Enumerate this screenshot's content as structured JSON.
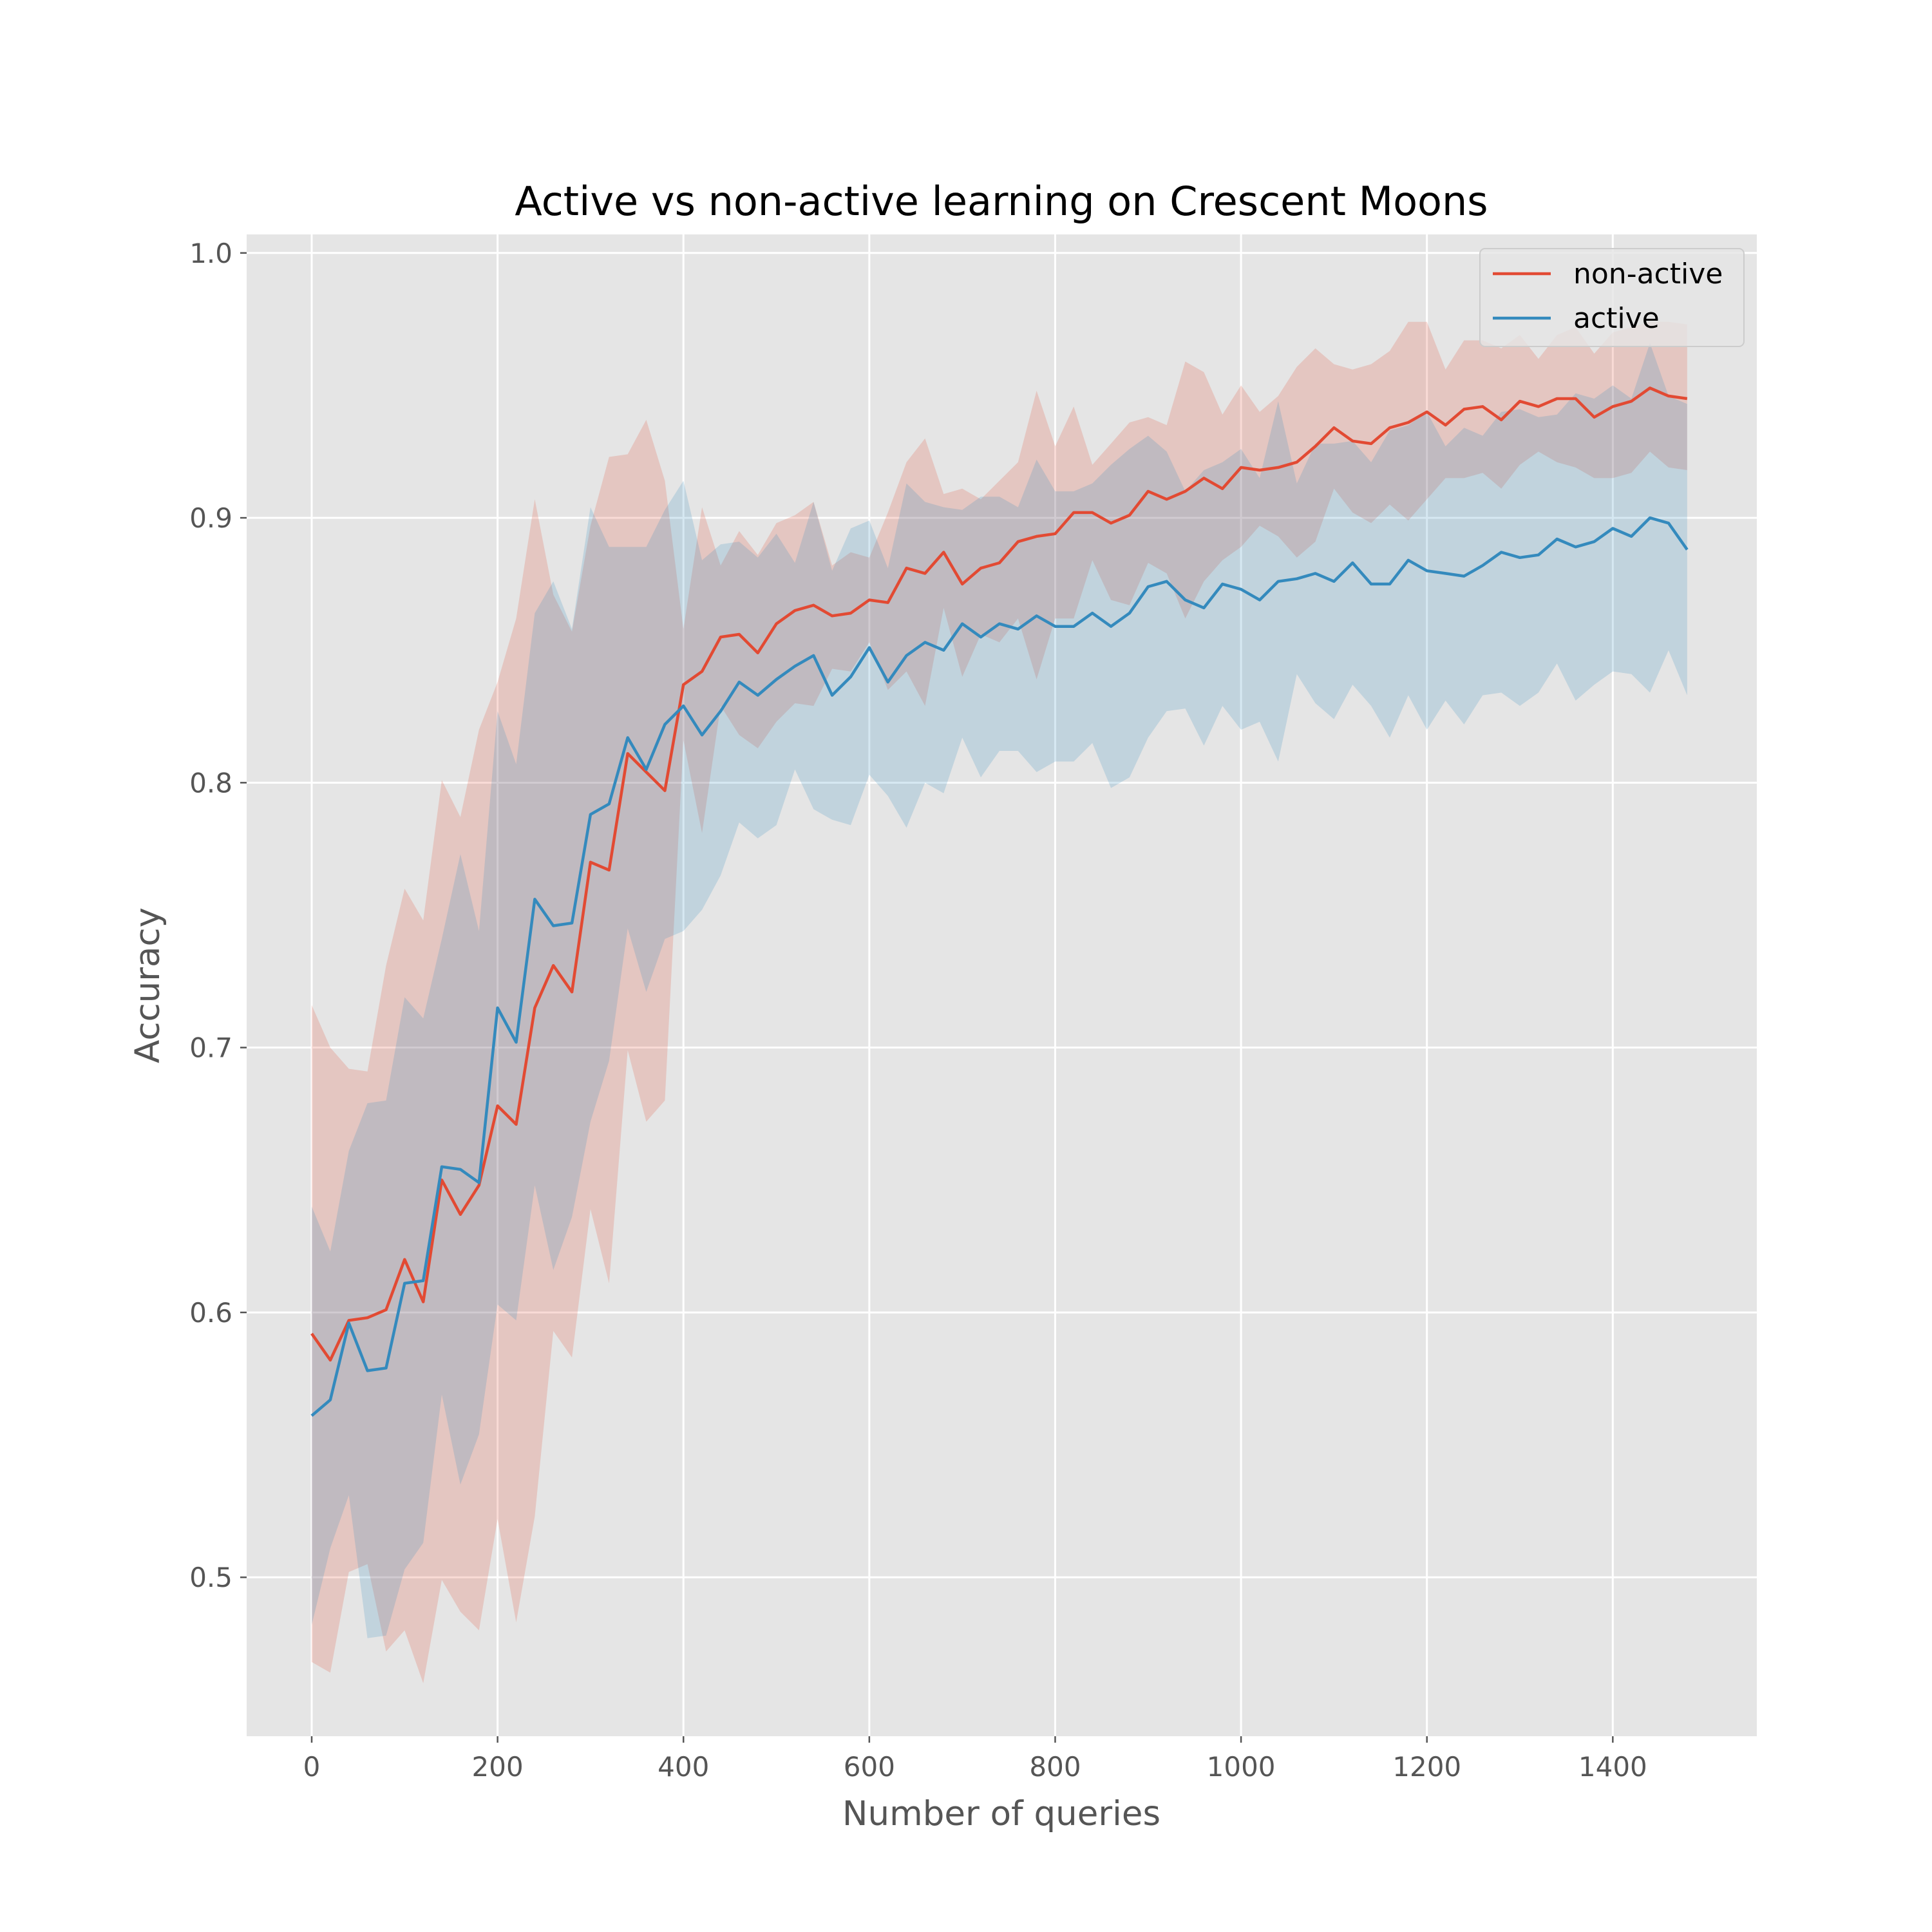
{
  "chart_data": {
    "type": "line",
    "title": "Active vs non-active learning on Crescent Moons",
    "xlabel": "Number of queries",
    "ylabel": "Accuracy",
    "xlim": [
      -70,
      1555
    ],
    "ylim": [
      0.44,
      1.007
    ],
    "xticks": [
      0,
      200,
      400,
      600,
      800,
      1000,
      1200,
      1400
    ],
    "yticks": [
      0.5,
      0.6,
      0.7,
      0.8,
      0.9,
      1.0
    ],
    "xtick_labels": [
      "0",
      "200",
      "400",
      "600",
      "800",
      "1000",
      "1200",
      "1400"
    ],
    "ytick_labels": [
      "0.5",
      "0.6",
      "0.7",
      "0.8",
      "0.9",
      "1.0"
    ],
    "grid": true,
    "legend_position": "top-right",
    "x": [
      0,
      20,
      40,
      60,
      80,
      100,
      120,
      140,
      160,
      180,
      200,
      220,
      240,
      260,
      280,
      300,
      320,
      340,
      360,
      380,
      400,
      420,
      440,
      460,
      480,
      500,
      520,
      540,
      560,
      580,
      600,
      620,
      640,
      660,
      680,
      700,
      720,
      740,
      760,
      780,
      800,
      820,
      840,
      860,
      880,
      900,
      920,
      940,
      960,
      980,
      1000,
      1020,
      1040,
      1060,
      1080,
      1100,
      1120,
      1140,
      1160,
      1180,
      1200,
      1220,
      1240,
      1260,
      1280,
      1300,
      1320,
      1340,
      1360,
      1380,
      1400,
      1420,
      1440,
      1460,
      1480
    ],
    "series": [
      {
        "name": "non-active",
        "color": "#E24A33",
        "values": [
          0.592,
          0.582,
          0.597,
          0.598,
          0.601,
          0.62,
          0.604,
          0.65,
          0.637,
          0.648,
          0.678,
          0.671,
          0.715,
          0.731,
          0.721,
          0.77,
          0.767,
          0.811,
          0.804,
          0.797,
          0.837,
          0.842,
          0.855,
          0.856,
          0.849,
          0.86,
          0.865,
          0.867,
          0.863,
          0.864,
          0.869,
          0.868,
          0.881,
          0.879,
          0.887,
          0.875,
          0.881,
          0.883,
          0.891,
          0.893,
          0.894,
          0.902,
          0.902,
          0.898,
          0.901,
          0.91,
          0.907,
          0.91,
          0.915,
          0.911,
          0.919,
          0.918,
          0.919,
          0.921,
          0.927,
          0.934,
          0.929,
          0.928,
          0.934,
          0.936,
          0.94,
          0.935,
          0.941,
          0.942,
          0.937,
          0.944,
          0.942,
          0.945,
          0.945,
          0.938,
          0.942,
          0.944,
          0.949,
          0.946,
          0.945
        ],
        "upper": [
          0.716,
          0.7,
          0.692,
          0.691,
          0.731,
          0.76,
          0.748,
          0.801,
          0.787,
          0.82,
          0.838,
          0.862,
          0.907,
          0.871,
          0.857,
          0.897,
          0.923,
          0.924,
          0.937,
          0.914,
          0.858,
          0.904,
          0.882,
          0.895,
          0.886,
          0.898,
          0.901,
          0.906,
          0.882,
          0.887,
          0.885,
          0.902,
          0.921,
          0.93,
          0.909,
          0.911,
          0.907,
          0.914,
          0.921,
          0.948,
          0.927,
          0.942,
          0.92,
          0.928,
          0.936,
          0.938,
          0.935,
          0.959,
          0.955,
          0.939,
          0.95,
          0.94,
          0.946,
          0.957,
          0.964,
          0.958,
          0.956,
          0.958,
          0.963,
          0.974,
          0.974,
          0.956,
          0.967,
          0.967,
          0.964,
          0.969,
          0.96,
          0.969,
          0.972,
          0.962,
          0.97,
          0.972,
          0.974,
          0.974,
          0.973
        ],
        "lower": [
          0.468,
          0.464,
          0.502,
          0.505,
          0.472,
          0.48,
          0.46,
          0.499,
          0.487,
          0.48,
          0.522,
          0.483,
          0.523,
          0.593,
          0.583,
          0.639,
          0.611,
          0.699,
          0.672,
          0.68,
          0.816,
          0.781,
          0.829,
          0.818,
          0.813,
          0.823,
          0.83,
          0.829,
          0.843,
          0.842,
          0.853,
          0.835,
          0.842,
          0.829,
          0.866,
          0.84,
          0.856,
          0.853,
          0.862,
          0.839,
          0.862,
          0.862,
          0.884,
          0.869,
          0.867,
          0.883,
          0.879,
          0.862,
          0.876,
          0.884,
          0.889,
          0.897,
          0.893,
          0.885,
          0.891,
          0.911,
          0.902,
          0.898,
          0.905,
          0.899,
          0.907,
          0.915,
          0.915,
          0.917,
          0.911,
          0.92,
          0.925,
          0.921,
          0.919,
          0.915,
          0.915,
          0.917,
          0.925,
          0.919,
          0.918
        ]
      },
      {
        "name": "active",
        "color": "#348ABD",
        "values": [
          0.561,
          0.567,
          0.596,
          0.578,
          0.579,
          0.611,
          0.612,
          0.655,
          0.654,
          0.649,
          0.715,
          0.702,
          0.756,
          0.746,
          0.747,
          0.788,
          0.792,
          0.817,
          0.805,
          0.822,
          0.829,
          0.818,
          0.827,
          0.838,
          0.833,
          0.839,
          0.844,
          0.848,
          0.833,
          0.84,
          0.851,
          0.838,
          0.848,
          0.853,
          0.85,
          0.86,
          0.855,
          0.86,
          0.858,
          0.863,
          0.859,
          0.859,
          0.864,
          0.859,
          0.864,
          0.874,
          0.876,
          0.869,
          0.866,
          0.875,
          0.873,
          0.869,
          0.876,
          0.877,
          0.879,
          0.876,
          0.883,
          0.875,
          0.875,
          0.884,
          0.88,
          0.879,
          0.878,
          0.882,
          0.887,
          0.885,
          0.886,
          0.892,
          0.889,
          0.891,
          0.896,
          0.893,
          0.9,
          0.898,
          0.888
        ],
        "upper": [
          0.64,
          0.623,
          0.661,
          0.679,
          0.68,
          0.719,
          0.711,
          0.741,
          0.773,
          0.744,
          0.827,
          0.807,
          0.864,
          0.876,
          0.858,
          0.904,
          0.889,
          0.889,
          0.889,
          0.903,
          0.914,
          0.884,
          0.89,
          0.891,
          0.885,
          0.894,
          0.883,
          0.906,
          0.88,
          0.896,
          0.899,
          0.881,
          0.913,
          0.906,
          0.904,
          0.903,
          0.908,
          0.908,
          0.904,
          0.922,
          0.91,
          0.91,
          0.913,
          0.92,
          0.926,
          0.931,
          0.925,
          0.91,
          0.918,
          0.921,
          0.926,
          0.915,
          0.944,
          0.913,
          0.928,
          0.928,
          0.929,
          0.921,
          0.933,
          0.935,
          0.94,
          0.927,
          0.934,
          0.931,
          0.94,
          0.941,
          0.938,
          0.939,
          0.947,
          0.945,
          0.95,
          0.945,
          0.966,
          0.946,
          0.943
        ],
        "lower": [
          0.482,
          0.511,
          0.531,
          0.477,
          0.478,
          0.503,
          0.513,
          0.569,
          0.535,
          0.554,
          0.603,
          0.597,
          0.648,
          0.616,
          0.636,
          0.672,
          0.695,
          0.745,
          0.721,
          0.741,
          0.744,
          0.752,
          0.765,
          0.785,
          0.779,
          0.784,
          0.805,
          0.79,
          0.786,
          0.784,
          0.803,
          0.795,
          0.783,
          0.8,
          0.796,
          0.817,
          0.802,
          0.812,
          0.812,
          0.804,
          0.808,
          0.808,
          0.815,
          0.798,
          0.802,
          0.817,
          0.827,
          0.828,
          0.814,
          0.829,
          0.82,
          0.823,
          0.808,
          0.841,
          0.83,
          0.824,
          0.837,
          0.829,
          0.817,
          0.833,
          0.82,
          0.831,
          0.822,
          0.833,
          0.834,
          0.829,
          0.834,
          0.845,
          0.831,
          0.837,
          0.842,
          0.841,
          0.834,
          0.85,
          0.833
        ]
      }
    ]
  }
}
